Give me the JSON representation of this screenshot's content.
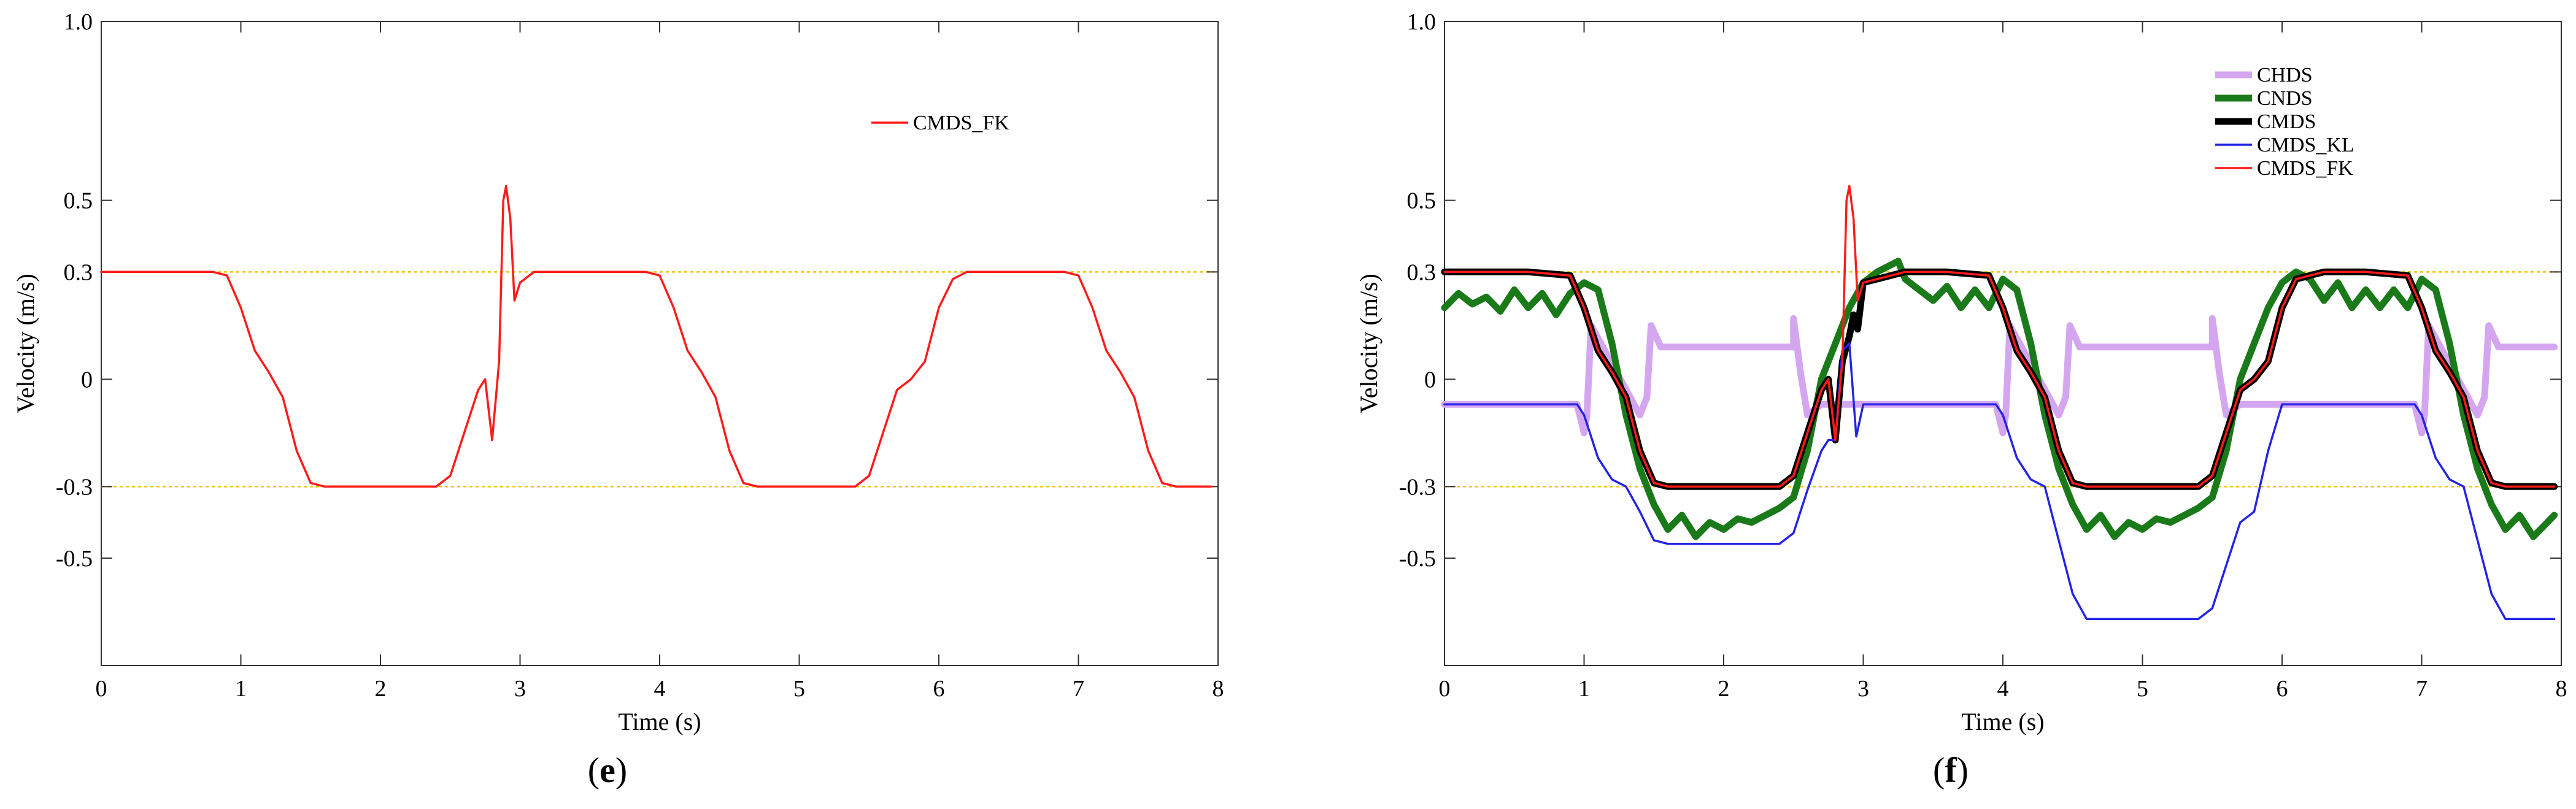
{
  "colors": {
    "CHDS": "#d5a6f0",
    "CNDS": "#1a7a1a",
    "CMDS": "#000000",
    "CMDS_KL": "#2323e6",
    "CMDS_FK": "#ff1a1a",
    "reference_line": "#f2c200",
    "axis": "#000000"
  },
  "panels": [
    {
      "label_open": "(",
      "letter": "e",
      "label_close": ")"
    },
    {
      "label_open": "(",
      "letter": "f",
      "label_close": ")"
    }
  ],
  "chart_data": [
    {
      "type": "line",
      "title": "",
      "xlabel": "Time (s)",
      "ylabel": "Velocity (m/s)",
      "xlim": [
        0,
        8
      ],
      "ylim": [
        -0.8,
        1.0
      ],
      "x_ticks": [
        0,
        1,
        2,
        3,
        4,
        5,
        6,
        7,
        8
      ],
      "x_tick_labels": [
        "0",
        "1",
        "2",
        "3",
        "4",
        "5",
        "6",
        "7",
        "8"
      ],
      "y_ticks": [
        -0.5,
        -0.3,
        0,
        0.3,
        0.5,
        1.0
      ],
      "y_tick_labels": [
        "-0.5",
        "-0.3",
        "0",
        "0.3",
        "0.5",
        "1.0"
      ],
      "reference_lines": [
        0.3,
        -0.3
      ],
      "grid": false,
      "legend_position": "top-right",
      "series": [
        {
          "name": "CMDS_FK",
          "x": [
            0,
            0.1,
            0.2,
            0.3,
            0.4,
            0.5,
            0.6,
            0.7,
            0.8,
            0.9,
            1.0,
            1.1,
            1.2,
            1.3,
            1.4,
            1.5,
            1.6,
            1.7,
            1.8,
            1.9,
            2.0,
            2.1,
            2.2,
            2.3,
            2.4,
            2.5,
            2.6,
            2.7,
            2.75,
            2.8,
            2.85,
            2.88,
            2.9,
            2.93,
            2.96,
            3.0,
            3.1,
            3.2,
            3.3,
            3.4,
            3.5,
            3.6,
            3.7,
            3.8,
            3.9,
            4.0,
            4.1,
            4.2,
            4.3,
            4.4,
            4.5,
            4.6,
            4.7,
            4.8,
            4.9,
            5.0,
            5.1,
            5.2,
            5.3,
            5.4,
            5.5,
            5.6,
            5.7,
            5.8,
            5.9,
            6.0,
            6.1,
            6.2,
            6.3,
            6.4,
            6.5,
            6.6,
            6.7,
            6.8,
            6.9,
            7.0,
            7.1,
            7.2,
            7.3,
            7.4,
            7.5,
            7.6,
            7.7,
            7.8,
            7.9,
            7.95
          ],
          "y": [
            0.3,
            0.3,
            0.3,
            0.3,
            0.3,
            0.3,
            0.3,
            0.3,
            0.3,
            0.29,
            0.2,
            0.08,
            0.02,
            -0.05,
            -0.2,
            -0.29,
            -0.3,
            -0.3,
            -0.3,
            -0.3,
            -0.3,
            -0.3,
            -0.3,
            -0.3,
            -0.3,
            -0.27,
            -0.15,
            -0.03,
            0.0,
            -0.17,
            0.05,
            0.5,
            0.54,
            0.45,
            0.22,
            0.27,
            0.3,
            0.3,
            0.3,
            0.3,
            0.3,
            0.3,
            0.3,
            0.3,
            0.3,
            0.29,
            0.2,
            0.08,
            0.02,
            -0.05,
            -0.2,
            -0.29,
            -0.3,
            -0.3,
            -0.3,
            -0.3,
            -0.3,
            -0.3,
            -0.3,
            -0.3,
            -0.27,
            -0.15,
            -0.03,
            0.0,
            0.05,
            0.2,
            0.28,
            0.3,
            0.3,
            0.3,
            0.3,
            0.3,
            0.3,
            0.3,
            0.3,
            0.29,
            0.2,
            0.08,
            0.02,
            -0.05,
            -0.2,
            -0.29,
            -0.3,
            -0.3,
            -0.3,
            -0.3
          ]
        }
      ]
    },
    {
      "type": "line",
      "title": "",
      "xlabel": "Time (s)",
      "ylabel": "Velocity (m/s)",
      "xlim": [
        0,
        8
      ],
      "ylim": [
        -0.8,
        1.0
      ],
      "x_ticks": [
        0,
        1,
        2,
        3,
        4,
        5,
        6,
        7,
        8
      ],
      "x_tick_labels": [
        "0",
        "1",
        "2",
        "3",
        "4",
        "5",
        "6",
        "7",
        "8"
      ],
      "y_ticks": [
        -0.5,
        -0.3,
        0,
        0.3,
        0.5,
        1.0
      ],
      "y_tick_labels": [
        "-0.5",
        "-0.3",
        "0",
        "0.3",
        "0.5",
        "1.0"
      ],
      "reference_lines": [
        0.3,
        -0.3
      ],
      "grid": false,
      "legend_position": "top-right",
      "series": [
        {
          "name": "CHDS",
          "x": [
            0,
            0.5,
            0.95,
            1.0,
            1.02,
            1.05,
            1.4,
            1.45,
            1.48,
            1.55,
            2.0,
            2.5,
            2.5,
            2.55,
            2.6,
            2.7,
            2.85,
            2.95,
            3.0,
            3.05,
            3.5,
            3.95,
            4.0,
            4.02,
            4.05,
            4.4,
            4.45,
            4.48,
            4.55,
            5.0,
            5.5,
            5.5,
            5.55,
            5.6,
            5.7,
            5.95,
            6.0,
            6.05,
            6.5,
            6.95,
            7.0,
            7.02,
            7.05,
            7.4,
            7.45,
            7.48,
            7.55,
            7.95
          ],
          "y": [
            -0.07,
            -0.07,
            -0.07,
            -0.15,
            -0.1,
            0.15,
            -0.1,
            -0.05,
            0.15,
            0.09,
            0.09,
            0.09,
            0.17,
            0.02,
            -0.1,
            -0.07,
            -0.07,
            -0.07,
            -0.07,
            -0.07,
            -0.07,
            -0.07,
            -0.15,
            -0.1,
            0.15,
            -0.1,
            -0.05,
            0.15,
            0.09,
            0.09,
            0.09,
            0.17,
            0.02,
            -0.1,
            -0.07,
            -0.07,
            -0.07,
            -0.07,
            -0.07,
            -0.07,
            -0.15,
            -0.1,
            0.15,
            -0.1,
            -0.05,
            0.15,
            0.09,
            0.09
          ]
        },
        {
          "name": "CNDS",
          "x": [
            0,
            0.1,
            0.2,
            0.3,
            0.4,
            0.5,
            0.6,
            0.7,
            0.8,
            0.9,
            1.0,
            1.1,
            1.2,
            1.3,
            1.4,
            1.5,
            1.6,
            1.7,
            1.8,
            1.9,
            2.0,
            2.1,
            2.2,
            2.3,
            2.4,
            2.5,
            2.6,
            2.7,
            2.8,
            2.9,
            3.0,
            3.1,
            3.2,
            3.25,
            3.3,
            3.4,
            3.5,
            3.6,
            3.7,
            3.8,
            3.9,
            4.0,
            4.1,
            4.2,
            4.3,
            4.4,
            4.5,
            4.6,
            4.7,
            4.8,
            4.9,
            5.0,
            5.1,
            5.2,
            5.3,
            5.4,
            5.5,
            5.6,
            5.7,
            5.8,
            5.9,
            6.0,
            6.1,
            6.2,
            6.3,
            6.4,
            6.5,
            6.6,
            6.7,
            6.8,
            6.9,
            7.0,
            7.1,
            7.2,
            7.3,
            7.4,
            7.5,
            7.6,
            7.7,
            7.8,
            7.9,
            7.95
          ],
          "y": [
            0.2,
            0.24,
            0.21,
            0.23,
            0.19,
            0.25,
            0.2,
            0.24,
            0.18,
            0.24,
            0.27,
            0.25,
            0.1,
            -0.1,
            -0.25,
            -0.35,
            -0.42,
            -0.38,
            -0.44,
            -0.4,
            -0.42,
            -0.39,
            -0.4,
            -0.38,
            -0.36,
            -0.33,
            -0.2,
            0.0,
            0.1,
            0.2,
            0.27,
            0.3,
            0.32,
            0.33,
            0.28,
            0.25,
            0.22,
            0.26,
            0.2,
            0.25,
            0.2,
            0.28,
            0.25,
            0.1,
            -0.1,
            -0.25,
            -0.35,
            -0.42,
            -0.38,
            -0.44,
            -0.4,
            -0.42,
            -0.39,
            -0.4,
            -0.38,
            -0.36,
            -0.33,
            -0.2,
            0.0,
            0.1,
            0.2,
            0.27,
            0.3,
            0.28,
            0.22,
            0.27,
            0.2,
            0.25,
            0.2,
            0.25,
            0.2,
            0.28,
            0.25,
            0.1,
            -0.1,
            -0.25,
            -0.35,
            -0.42,
            -0.38,
            -0.44,
            -0.4,
            -0.38
          ]
        },
        {
          "name": "CMDS",
          "x": [
            0,
            0.3,
            0.6,
            0.9,
            1.0,
            1.1,
            1.2,
            1.3,
            1.4,
            1.5,
            1.6,
            1.8,
            2.0,
            2.2,
            2.4,
            2.5,
            2.6,
            2.7,
            2.75,
            2.8,
            2.85,
            2.9,
            2.93,
            2.96,
            3.0,
            3.3,
            3.6,
            3.9,
            4.0,
            4.1,
            4.2,
            4.3,
            4.4,
            4.5,
            4.6,
            4.8,
            5.0,
            5.2,
            5.4,
            5.5,
            5.6,
            5.7,
            5.8,
            5.9,
            6.0,
            6.1,
            6.3,
            6.6,
            6.9,
            7.0,
            7.1,
            7.2,
            7.3,
            7.4,
            7.5,
            7.6,
            7.8,
            7.95
          ],
          "y": [
            0.3,
            0.3,
            0.3,
            0.29,
            0.2,
            0.08,
            0.02,
            -0.05,
            -0.2,
            -0.29,
            -0.3,
            -0.3,
            -0.3,
            -0.3,
            -0.3,
            -0.27,
            -0.15,
            -0.03,
            0.0,
            -0.17,
            0.05,
            0.12,
            0.18,
            0.14,
            0.27,
            0.3,
            0.3,
            0.29,
            0.2,
            0.08,
            0.02,
            -0.05,
            -0.2,
            -0.29,
            -0.3,
            -0.3,
            -0.3,
            -0.3,
            -0.3,
            -0.27,
            -0.15,
            -0.03,
            0.0,
            0.05,
            0.2,
            0.28,
            0.3,
            0.3,
            0.29,
            0.2,
            0.08,
            0.02,
            -0.05,
            -0.2,
            -0.29,
            -0.3,
            -0.3,
            -0.3
          ]
        },
        {
          "name": "CMDS_KL",
          "x": [
            0,
            0.5,
            0.95,
            1.0,
            1.1,
            1.2,
            1.3,
            1.4,
            1.5,
            1.6,
            2.0,
            2.4,
            2.5,
            2.6,
            2.7,
            2.75,
            2.8,
            2.85,
            2.9,
            2.95,
            3.0,
            3.5,
            3.95,
            4.0,
            4.1,
            4.2,
            4.3,
            4.4,
            4.5,
            4.6,
            5.0,
            5.4,
            5.5,
            5.6,
            5.7,
            5.8,
            5.9,
            6.0,
            6.5,
            6.95,
            7.0,
            7.1,
            7.2,
            7.3,
            7.4,
            7.5,
            7.6,
            7.95
          ],
          "y": [
            -0.07,
            -0.07,
            -0.07,
            -0.1,
            -0.22,
            -0.28,
            -0.3,
            -0.37,
            -0.45,
            -0.46,
            -0.46,
            -0.46,
            -0.43,
            -0.31,
            -0.2,
            -0.17,
            -0.17,
            0.08,
            0.1,
            -0.16,
            -0.07,
            -0.07,
            -0.07,
            -0.1,
            -0.22,
            -0.28,
            -0.3,
            -0.45,
            -0.6,
            -0.67,
            -0.67,
            -0.67,
            -0.64,
            -0.52,
            -0.4,
            -0.37,
            -0.2,
            -0.07,
            -0.07,
            -0.07,
            -0.1,
            -0.22,
            -0.28,
            -0.3,
            -0.45,
            -0.6,
            -0.67,
            -0.67
          ]
        },
        {
          "name": "CMDS_FK",
          "x": [
            0,
            0.3,
            0.6,
            0.9,
            1.0,
            1.1,
            1.2,
            1.3,
            1.4,
            1.5,
            1.6,
            1.8,
            2.0,
            2.2,
            2.4,
            2.5,
            2.6,
            2.7,
            2.75,
            2.8,
            2.85,
            2.88,
            2.9,
            2.93,
            2.96,
            3.0,
            3.3,
            3.6,
            3.9,
            4.0,
            4.1,
            4.2,
            4.3,
            4.4,
            4.5,
            4.6,
            4.8,
            5.0,
            5.2,
            5.4,
            5.5,
            5.6,
            5.7,
            5.8,
            5.9,
            6.0,
            6.1,
            6.3,
            6.6,
            6.9,
            7.0,
            7.1,
            7.2,
            7.3,
            7.4,
            7.5,
            7.6,
            7.8,
            7.95
          ],
          "y": [
            0.3,
            0.3,
            0.3,
            0.29,
            0.2,
            0.08,
            0.02,
            -0.05,
            -0.2,
            -0.29,
            -0.3,
            -0.3,
            -0.3,
            -0.3,
            -0.3,
            -0.27,
            -0.15,
            -0.03,
            0.0,
            -0.17,
            0.05,
            0.5,
            0.54,
            0.45,
            0.22,
            0.27,
            0.3,
            0.3,
            0.29,
            0.2,
            0.08,
            0.02,
            -0.05,
            -0.2,
            -0.29,
            -0.3,
            -0.3,
            -0.3,
            -0.3,
            -0.3,
            -0.27,
            -0.15,
            -0.03,
            0.0,
            0.05,
            0.2,
            0.28,
            0.3,
            0.3,
            0.29,
            0.2,
            0.08,
            0.02,
            -0.05,
            -0.2,
            -0.29,
            -0.3,
            -0.3,
            -0.3
          ]
        }
      ]
    }
  ]
}
